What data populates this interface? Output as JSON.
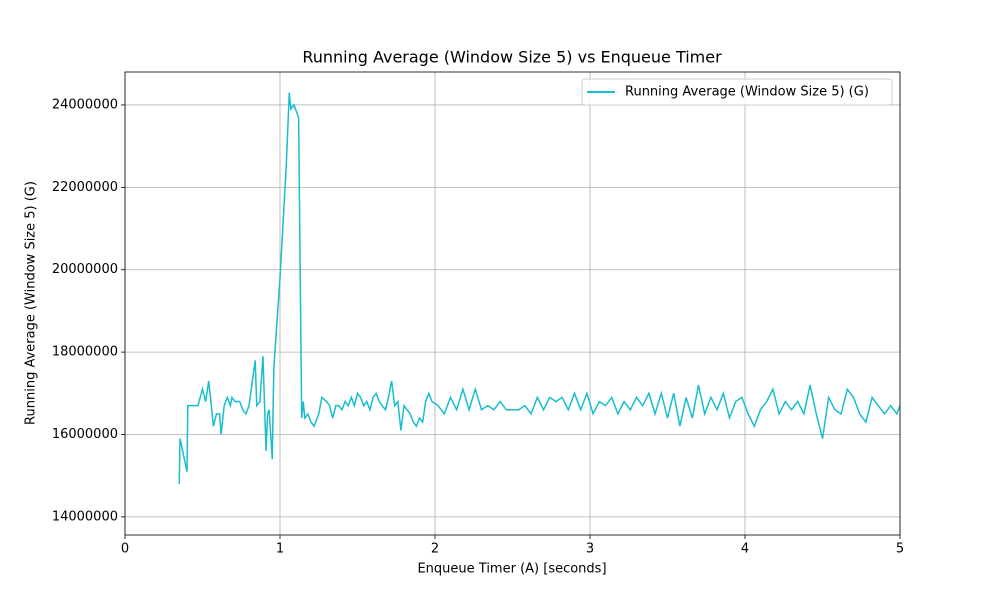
{
  "chart_data": {
    "type": "line",
    "title": "Running Average (Window Size 5) vs Enqueue Timer",
    "x_label": "Enqueue Timer (A) [seconds]",
    "y_label": "Running Average (Window Size 5) (G)",
    "xlim": [
      0,
      5
    ],
    "xticks": [
      0,
      1,
      2,
      3,
      4,
      5
    ],
    "ylim": [
      13560000,
      24800000
    ],
    "yticks": [
      14000000,
      16000000,
      18000000,
      20000000,
      22000000,
      24000000
    ],
    "grid": true,
    "legend": "upper right",
    "x": [
      0.35,
      0.355,
      0.4,
      0.405,
      0.47,
      0.5,
      0.52,
      0.54,
      0.56,
      0.57,
      0.59,
      0.61,
      0.62,
      0.64,
      0.66,
      0.68,
      0.69,
      0.71,
      0.74,
      0.76,
      0.78,
      0.8,
      0.84,
      0.85,
      0.87,
      0.89,
      0.91,
      0.92,
      0.93,
      0.95,
      0.96,
      1.0,
      1.04,
      1.06,
      1.07,
      1.09,
      1.1,
      1.12,
      1.14,
      1.15,
      1.16,
      1.18,
      1.2,
      1.22,
      1.25,
      1.27,
      1.3,
      1.32,
      1.34,
      1.36,
      1.38,
      1.4,
      1.42,
      1.44,
      1.46,
      1.48,
      1.5,
      1.52,
      1.54,
      1.56,
      1.58,
      1.6,
      1.62,
      1.64,
      1.66,
      1.68,
      1.7,
      1.72,
      1.74,
      1.76,
      1.78,
      1.8,
      1.82,
      1.84,
      1.86,
      1.88,
      1.9,
      1.92,
      1.94,
      1.96,
      1.98,
      2.02,
      2.06,
      2.1,
      2.14,
      2.18,
      2.22,
      2.26,
      2.3,
      2.34,
      2.38,
      2.42,
      2.46,
      2.5,
      2.54,
      2.58,
      2.62,
      2.66,
      2.7,
      2.74,
      2.78,
      2.82,
      2.86,
      2.9,
      2.94,
      2.98,
      3.02,
      3.06,
      3.1,
      3.14,
      3.18,
      3.22,
      3.26,
      3.3,
      3.34,
      3.38,
      3.42,
      3.46,
      3.5,
      3.54,
      3.58,
      3.62,
      3.66,
      3.7,
      3.74,
      3.78,
      3.82,
      3.86,
      3.9,
      3.94,
      3.98,
      4.02,
      4.06,
      4.1,
      4.14,
      4.18,
      4.22,
      4.26,
      4.3,
      4.34,
      4.38,
      4.42,
      4.46,
      4.5,
      4.54,
      4.58,
      4.62,
      4.66,
      4.7,
      4.74,
      4.78,
      4.82,
      4.86,
      4.9,
      4.94,
      4.98,
      5.0
    ],
    "series": [
      {
        "name": "Running Average (Window Size 5) (G)",
        "color": "#17becf",
        "values": [
          14800000,
          15900000,
          15100000,
          16700000,
          16700000,
          17100000,
          16800000,
          17300000,
          16600000,
          16200000,
          16500000,
          16500000,
          16000000,
          16700000,
          16900000,
          16700000,
          16900000,
          16800000,
          16800000,
          16600000,
          16500000,
          16700000,
          17800000,
          16700000,
          16800000,
          17900000,
          15600000,
          16500000,
          16600000,
          15400000,
          17600000,
          19800000,
          22500000,
          24300000,
          23900000,
          24000000,
          23900000,
          23700000,
          16400000,
          16800000,
          16400000,
          16500000,
          16300000,
          16200000,
          16500000,
          16900000,
          16800000,
          16700000,
          16400000,
          16700000,
          16700000,
          16600000,
          16800000,
          16700000,
          16900000,
          16700000,
          17000000,
          16900000,
          16700000,
          16800000,
          16600000,
          16900000,
          17000000,
          16800000,
          16700000,
          16600000,
          16900000,
          17300000,
          16700000,
          16800000,
          16100000,
          16700000,
          16600000,
          16500000,
          16300000,
          16200000,
          16400000,
          16300000,
          16800000,
          17000000,
          16800000,
          16700000,
          16500000,
          16900000,
          16600000,
          17100000,
          16600000,
          17100000,
          16600000,
          16700000,
          16600000,
          16800000,
          16600000,
          16600000,
          16600000,
          16700000,
          16500000,
          16900000,
          16600000,
          16900000,
          16800000,
          16900000,
          16600000,
          17000000,
          16600000,
          17000000,
          16500000,
          16800000,
          16700000,
          16900000,
          16500000,
          16800000,
          16600000,
          16900000,
          16700000,
          17000000,
          16500000,
          17000000,
          16400000,
          17000000,
          16200000,
          16900000,
          16400000,
          17200000,
          16500000,
          16900000,
          16600000,
          17000000,
          16400000,
          16800000,
          16900000,
          16500000,
          16200000,
          16600000,
          16800000,
          17100000,
          16500000,
          16800000,
          16600000,
          16800000,
          16500000,
          17200000,
          16500000,
          15900000,
          16900000,
          16600000,
          16500000,
          17100000,
          16900000,
          16500000,
          16300000,
          16900000,
          16700000,
          16500000,
          16700000,
          16500000,
          16700000
        ]
      }
    ]
  }
}
